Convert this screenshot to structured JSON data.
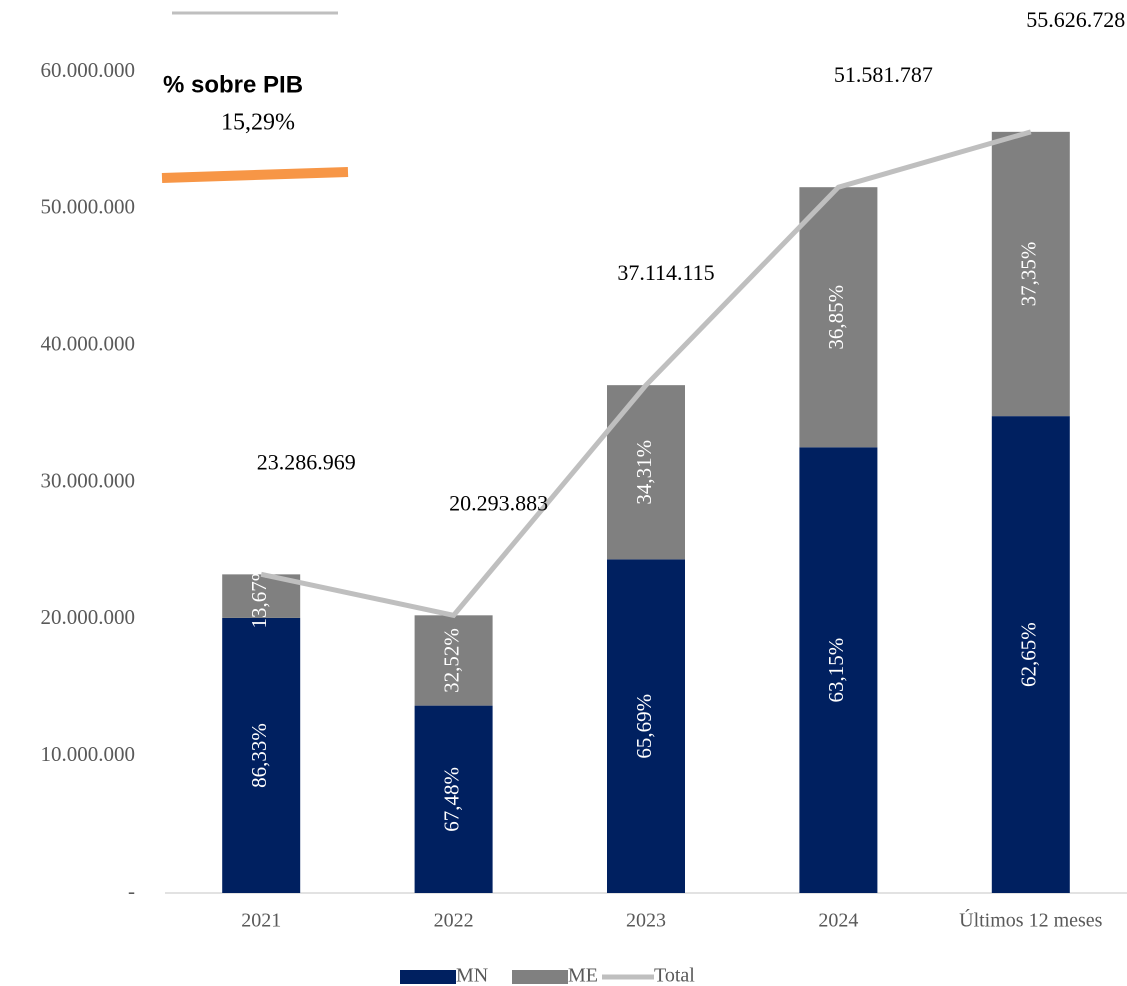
{
  "chart_data": {
    "type": "bar",
    "annotation_title": "% sobre PIB",
    "annotation_value": "15,29%",
    "categories": [
      "2021",
      "2022",
      "2023",
      "2024",
      "Últimos 12 meses"
    ],
    "series": [
      {
        "name": "MN",
        "color": "#002060",
        "values": [
          20103640,
          13694312,
          24380262,
          32573899,
          34850145
        ],
        "share_labels": [
          "86,33%",
          "67,48%",
          "65,69%",
          "63,15%",
          "62,65%"
        ]
      },
      {
        "name": "ME",
        "color": "#808080",
        "values": [
          3183329,
          6599571,
          12733853,
          19007888,
          20776583
        ],
        "share_labels": [
          "13,67%",
          "32,52%",
          "34,31%",
          "36,85%",
          "37,35%"
        ]
      },
      {
        "name": "Total",
        "type": "line",
        "color": "#bfbfbf",
        "values": [
          23286969,
          20293883,
          37114115,
          51581787,
          55626728
        ],
        "value_labels": [
          "23.286.969",
          "20.293.883",
          "37.114.115",
          "51.581.787",
          "55.626.728"
        ]
      }
    ],
    "ylim": [
      0,
      60000000
    ],
    "yticks": [
      {
        "value": 0,
        "label": "-"
      },
      {
        "value": 10000000,
        "label": "10.000.000"
      },
      {
        "value": 20000000,
        "label": "20.000.000"
      },
      {
        "value": 30000000,
        "label": "30.000.000"
      },
      {
        "value": 40000000,
        "label": "40.000.000"
      },
      {
        "value": 50000000,
        "label": "50.000.000"
      },
      {
        "value": 60000000,
        "label": "60.000.000"
      }
    ],
    "legend": "bottom"
  }
}
